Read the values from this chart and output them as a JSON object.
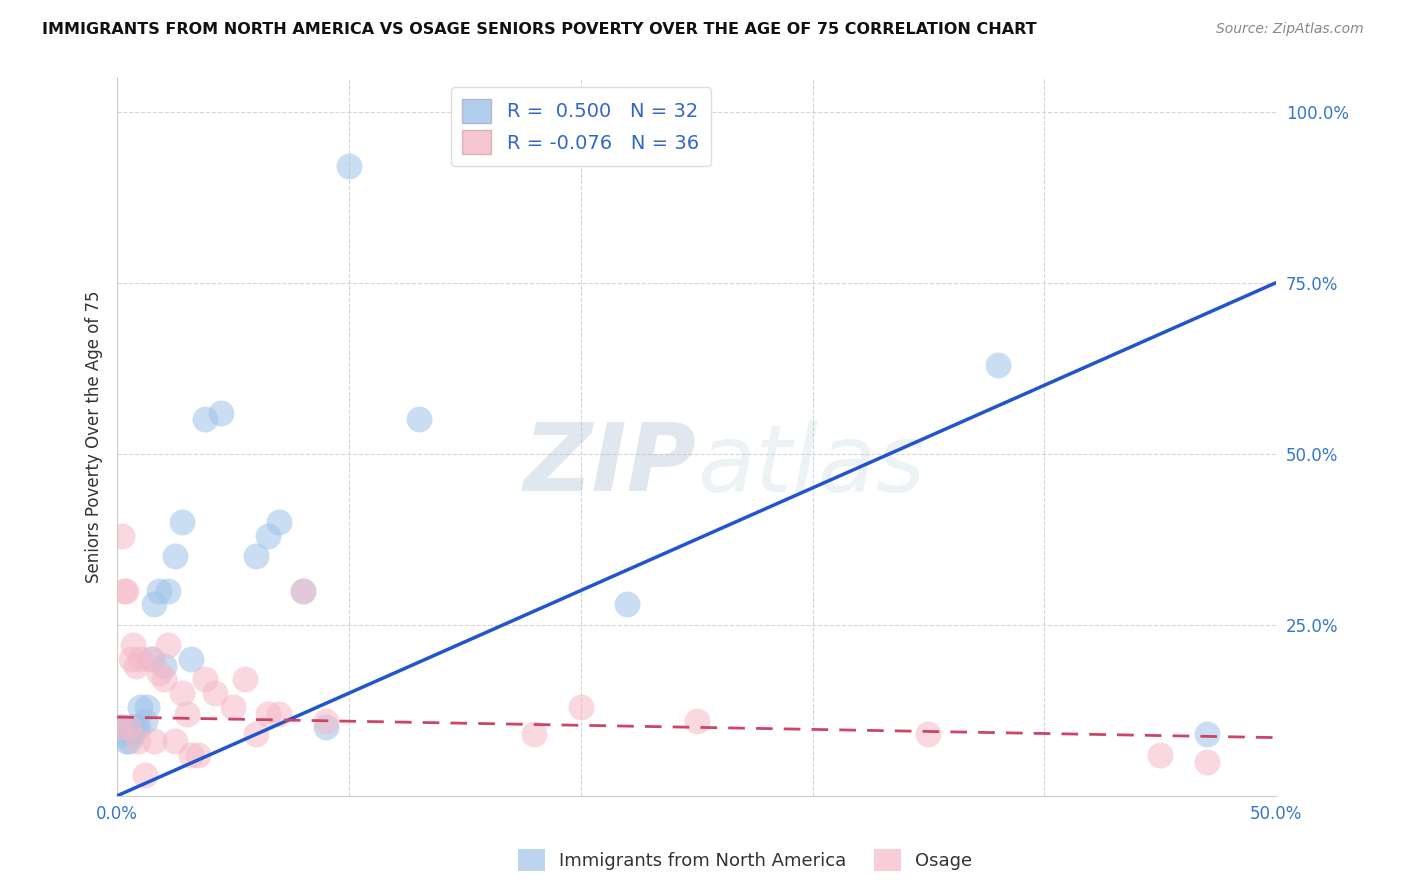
{
  "title": "IMMIGRANTS FROM NORTH AMERICA VS OSAGE SENIORS POVERTY OVER THE AGE OF 75 CORRELATION CHART",
  "source": "Source: ZipAtlas.com",
  "ylabel": "Seniors Poverty Over the Age of 75",
  "xlim": [
    0.0,
    0.5
  ],
  "ylim": [
    0.0,
    1.05
  ],
  "xticks": [
    0.0,
    0.5
  ],
  "yticks": [
    0.25,
    0.5,
    0.75,
    1.0
  ],
  "xtick_labels": [
    "0.0%",
    "50.0%"
  ],
  "ytick_labels": [
    "25.0%",
    "50.0%",
    "75.0%",
    "100.0%"
  ],
  "blue_color": "#9ec4e8",
  "pink_color": "#f5b8c8",
  "blue_line_color": "#2255cc",
  "pink_line_color": "#cc4466",
  "legend_blue_label": "Immigrants from North America",
  "legend_pink_label": "Osage",
  "R_blue": 0.5,
  "N_blue": 32,
  "R_pink": -0.076,
  "N_pink": 36,
  "blue_points_x": [
    0.001,
    0.002,
    0.003,
    0.004,
    0.005,
    0.006,
    0.007,
    0.008,
    0.009,
    0.01,
    0.012,
    0.013,
    0.015,
    0.016,
    0.018,
    0.02,
    0.022,
    0.025,
    0.028,
    0.032,
    0.038,
    0.045,
    0.06,
    0.065,
    0.07,
    0.08,
    0.09,
    0.1,
    0.13,
    0.22,
    0.38,
    0.47
  ],
  "blue_points_y": [
    0.1,
    0.09,
    0.1,
    0.08,
    0.08,
    0.1,
    0.09,
    0.1,
    0.1,
    0.13,
    0.11,
    0.13,
    0.2,
    0.28,
    0.3,
    0.19,
    0.3,
    0.35,
    0.4,
    0.2,
    0.55,
    0.56,
    0.35,
    0.38,
    0.4,
    0.3,
    0.1,
    0.92,
    0.55,
    0.28,
    0.63,
    0.09
  ],
  "pink_points_x": [
    0.001,
    0.002,
    0.003,
    0.004,
    0.005,
    0.006,
    0.007,
    0.008,
    0.009,
    0.01,
    0.012,
    0.014,
    0.016,
    0.018,
    0.02,
    0.022,
    0.025,
    0.028,
    0.03,
    0.032,
    0.035,
    0.038,
    0.042,
    0.05,
    0.055,
    0.06,
    0.065,
    0.07,
    0.08,
    0.09,
    0.18,
    0.2,
    0.25,
    0.35,
    0.45,
    0.47
  ],
  "pink_points_y": [
    0.1,
    0.38,
    0.3,
    0.3,
    0.1,
    0.2,
    0.22,
    0.19,
    0.08,
    0.2,
    0.03,
    0.2,
    0.08,
    0.18,
    0.17,
    0.22,
    0.08,
    0.15,
    0.12,
    0.06,
    0.06,
    0.17,
    0.15,
    0.13,
    0.17,
    0.09,
    0.12,
    0.12,
    0.3,
    0.11,
    0.09,
    0.13,
    0.11,
    0.09,
    0.06,
    0.05
  ],
  "watermark_zip": "ZIP",
  "watermark_atlas": "atlas",
  "background_color": "#ffffff",
  "grid_color": "#cccccc",
  "blue_line_x0": 0.0,
  "blue_line_y0": 0.0,
  "blue_line_x1": 0.5,
  "blue_line_y1": 0.75,
  "pink_line_x0": 0.0,
  "pink_line_y0": 0.115,
  "pink_line_x1": 0.5,
  "pink_line_y1": 0.085
}
